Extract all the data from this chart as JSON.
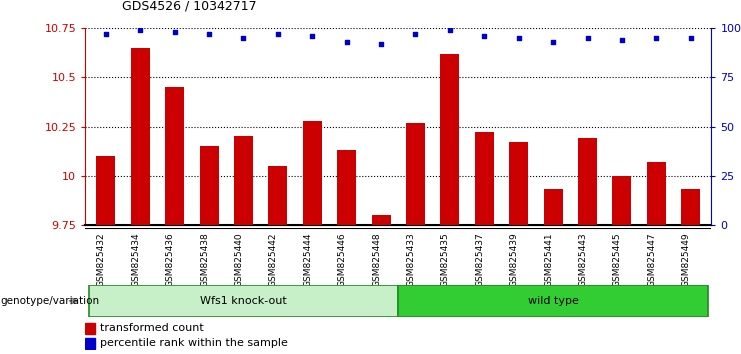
{
  "title": "GDS4526 / 10342717",
  "categories": [
    "GSM825432",
    "GSM825434",
    "GSM825436",
    "GSM825438",
    "GSM825440",
    "GSM825442",
    "GSM825444",
    "GSM825446",
    "GSM825448",
    "GSM825433",
    "GSM825435",
    "GSM825437",
    "GSM825439",
    "GSM825441",
    "GSM825443",
    "GSM825445",
    "GSM825447",
    "GSM825449"
  ],
  "bar_values": [
    10.1,
    10.65,
    10.45,
    10.15,
    10.2,
    10.05,
    10.28,
    10.13,
    9.8,
    10.27,
    10.62,
    10.22,
    10.17,
    9.93,
    10.19,
    10.0,
    10.07,
    9.93
  ],
  "dot_values": [
    97,
    99,
    98,
    97,
    95,
    97,
    96,
    93,
    92,
    97,
    99,
    96,
    95,
    93,
    95,
    94,
    95,
    95
  ],
  "ylim_left": [
    9.75,
    10.75
  ],
  "ylim_right": [
    0,
    100
  ],
  "yticks_left": [
    9.75,
    10.0,
    10.25,
    10.5,
    10.75
  ],
  "yticks_right": [
    0,
    25,
    50,
    75,
    100
  ],
  "ytick_labels_left": [
    "9.75",
    "10",
    "10.25",
    "10.5",
    "10.75"
  ],
  "ytick_labels_right": [
    "0",
    "25",
    "50",
    "75",
    "100%"
  ],
  "bar_color": "#cc0000",
  "dot_color": "#0000cc",
  "group1_label": "Wfs1 knock-out",
  "group2_label": "wild type",
  "group1_color": "#c8f0c8",
  "group2_color": "#32cd32",
  "group1_indices": [
    0,
    8
  ],
  "group2_indices": [
    9,
    17
  ],
  "legend_bar_label": "transformed count",
  "legend_dot_label": "percentile rank within the sample",
  "genotype_label": "genotype/variation",
  "bar_color_legend": "#cc0000",
  "dot_color_legend": "#0000cc",
  "xlabel_color": "#cc0000",
  "ylabel_right_color": "#0000cc",
  "background_color": "#ffffff",
  "tick_area_color": "#d3d3d3",
  "arrow_color": "#808080"
}
